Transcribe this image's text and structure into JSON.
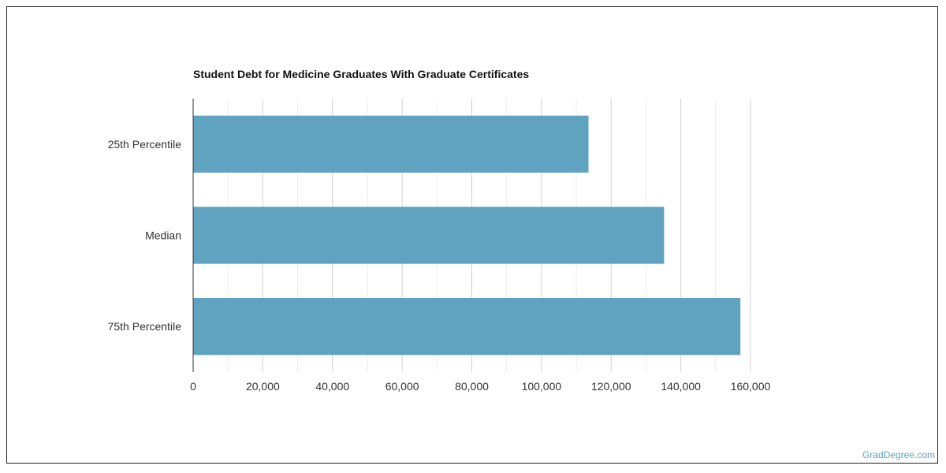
{
  "chart_data": {
    "type": "bar",
    "orientation": "horizontal",
    "title": "Student Debt for Medicine Graduates With Graduate Certificates",
    "categories": [
      "25th Percentile",
      "Median",
      "75th Percentile"
    ],
    "values": [
      113500,
      135200,
      157100
    ],
    "x_ticks": [
      "0",
      "20,000",
      "40,000",
      "60,000",
      "80,000",
      "100,000",
      "120,000",
      "140,000",
      "160,000"
    ],
    "xlim": [
      0,
      160000
    ],
    "xlabel": "",
    "ylabel": "",
    "grid": true,
    "bar_color": "#5fa3c0",
    "grid_color": "#dcdcdc"
  },
  "watermark": "GradDegree.com"
}
